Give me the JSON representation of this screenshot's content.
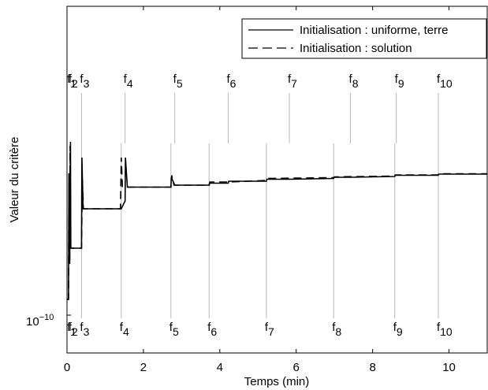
{
  "chart_data": {
    "type": "line",
    "xlabel": "Temps (min)",
    "ylabel": "Valeur du critère",
    "xlim": [
      0,
      11
    ],
    "ylim_top_unlabeled": true,
    "x_ticks": [
      0,
      2,
      4,
      6,
      8,
      10
    ],
    "y_tick_label": {
      "base": "10",
      "exp": "−10"
    },
    "legend": {
      "position": "top-right",
      "entries": [
        {
          "label": "Initialisation : uniforme, terre",
          "style": "solid"
        },
        {
          "label": "Initialisation : solution",
          "style": "dashed"
        }
      ]
    },
    "event_markers": {
      "series_solid": [
        {
          "label": "f",
          "sub": "1",
          "x": 0.04
        },
        {
          "label": "f",
          "sub": "2",
          "x": 0.08
        },
        {
          "label": "f",
          "sub": "3",
          "x": 0.38
        },
        {
          "label": "f",
          "sub": "4",
          "x": 1.42
        },
        {
          "label": "f",
          "sub": "5",
          "x": 2.72
        },
        {
          "label": "f",
          "sub": "6",
          "x": 3.72
        },
        {
          "label": "f",
          "sub": "7",
          "x": 5.22
        },
        {
          "label": "f",
          "sub": "8",
          "x": 6.98
        },
        {
          "label": "f",
          "sub": "9",
          "x": 8.58
        },
        {
          "label": "f",
          "sub": "10",
          "x": 9.72
        }
      ],
      "series_dashed": [
        {
          "label": "f",
          "sub": "1",
          "x": 0.04
        },
        {
          "label": "f",
          "sub": "2",
          "x": 0.08
        },
        {
          "label": "f",
          "sub": "3",
          "x": 0.38
        },
        {
          "label": "f",
          "sub": "4",
          "x": 1.52
        },
        {
          "label": "f",
          "sub": "5",
          "x": 2.82
        },
        {
          "label": "f",
          "sub": "6",
          "x": 4.22
        },
        {
          "label": "f",
          "sub": "7",
          "x": 5.82
        },
        {
          "label": "f",
          "sub": "8",
          "x": 7.42
        },
        {
          "label": "f",
          "sub": "9",
          "x": 8.62
        },
        {
          "label": "f",
          "sub": "10",
          "x": 9.72
        }
      ]
    },
    "series": [
      {
        "style": "solid",
        "points": [
          [
            0.0,
            0.6
          ],
          [
            0.04,
            0.6
          ],
          [
            0.05,
            3.8
          ],
          [
            0.07,
            1.5
          ],
          [
            0.09,
            4.6
          ],
          [
            0.1,
            1.9
          ],
          [
            0.38,
            1.9
          ],
          [
            0.39,
            4.2
          ],
          [
            0.42,
            2.9
          ],
          [
            0.6,
            2.9
          ],
          [
            1.4,
            2.9
          ],
          [
            1.42,
            2.9
          ],
          [
            1.52,
            3.1
          ],
          [
            1.53,
            4.2
          ],
          [
            1.58,
            3.45
          ],
          [
            1.9,
            3.45
          ],
          [
            2.72,
            3.45
          ],
          [
            2.73,
            3.7
          ],
          [
            2.82,
            3.5
          ],
          [
            3.0,
            3.5
          ],
          [
            3.72,
            3.5
          ],
          [
            3.73,
            3.55
          ],
          [
            4.22,
            3.55
          ],
          [
            4.23,
            3.6
          ],
          [
            5.22,
            3.6
          ],
          [
            5.23,
            3.65
          ],
          [
            5.82,
            3.65
          ],
          [
            6.98,
            3.67
          ],
          [
            6.99,
            3.7
          ],
          [
            7.42,
            3.7
          ],
          [
            8.58,
            3.72
          ],
          [
            8.59,
            3.75
          ],
          [
            9.72,
            3.75
          ],
          [
            9.73,
            3.78
          ],
          [
            11.0,
            3.78
          ]
        ]
      },
      {
        "style": "dashed",
        "points": [
          [
            0.0,
            0.6
          ],
          [
            0.04,
            0.6
          ],
          [
            0.05,
            3.5
          ],
          [
            0.07,
            1.6
          ],
          [
            0.08,
            4.5
          ],
          [
            0.1,
            1.9
          ],
          [
            0.38,
            1.9
          ],
          [
            0.4,
            3.7
          ],
          [
            0.43,
            2.9
          ],
          [
            1.4,
            2.9
          ],
          [
            1.42,
            4.2
          ],
          [
            1.45,
            3.45
          ],
          [
            2.72,
            3.45
          ],
          [
            2.74,
            3.75
          ],
          [
            2.8,
            3.5
          ],
          [
            3.72,
            3.5
          ],
          [
            3.74,
            3.58
          ],
          [
            4.22,
            3.58
          ],
          [
            5.22,
            3.62
          ],
          [
            5.24,
            3.67
          ],
          [
            6.98,
            3.69
          ],
          [
            7.0,
            3.71
          ],
          [
            8.58,
            3.73
          ],
          [
            8.6,
            3.76
          ],
          [
            9.72,
            3.76
          ],
          [
            9.74,
            3.79
          ],
          [
            11.0,
            3.79
          ]
        ]
      }
    ]
  }
}
